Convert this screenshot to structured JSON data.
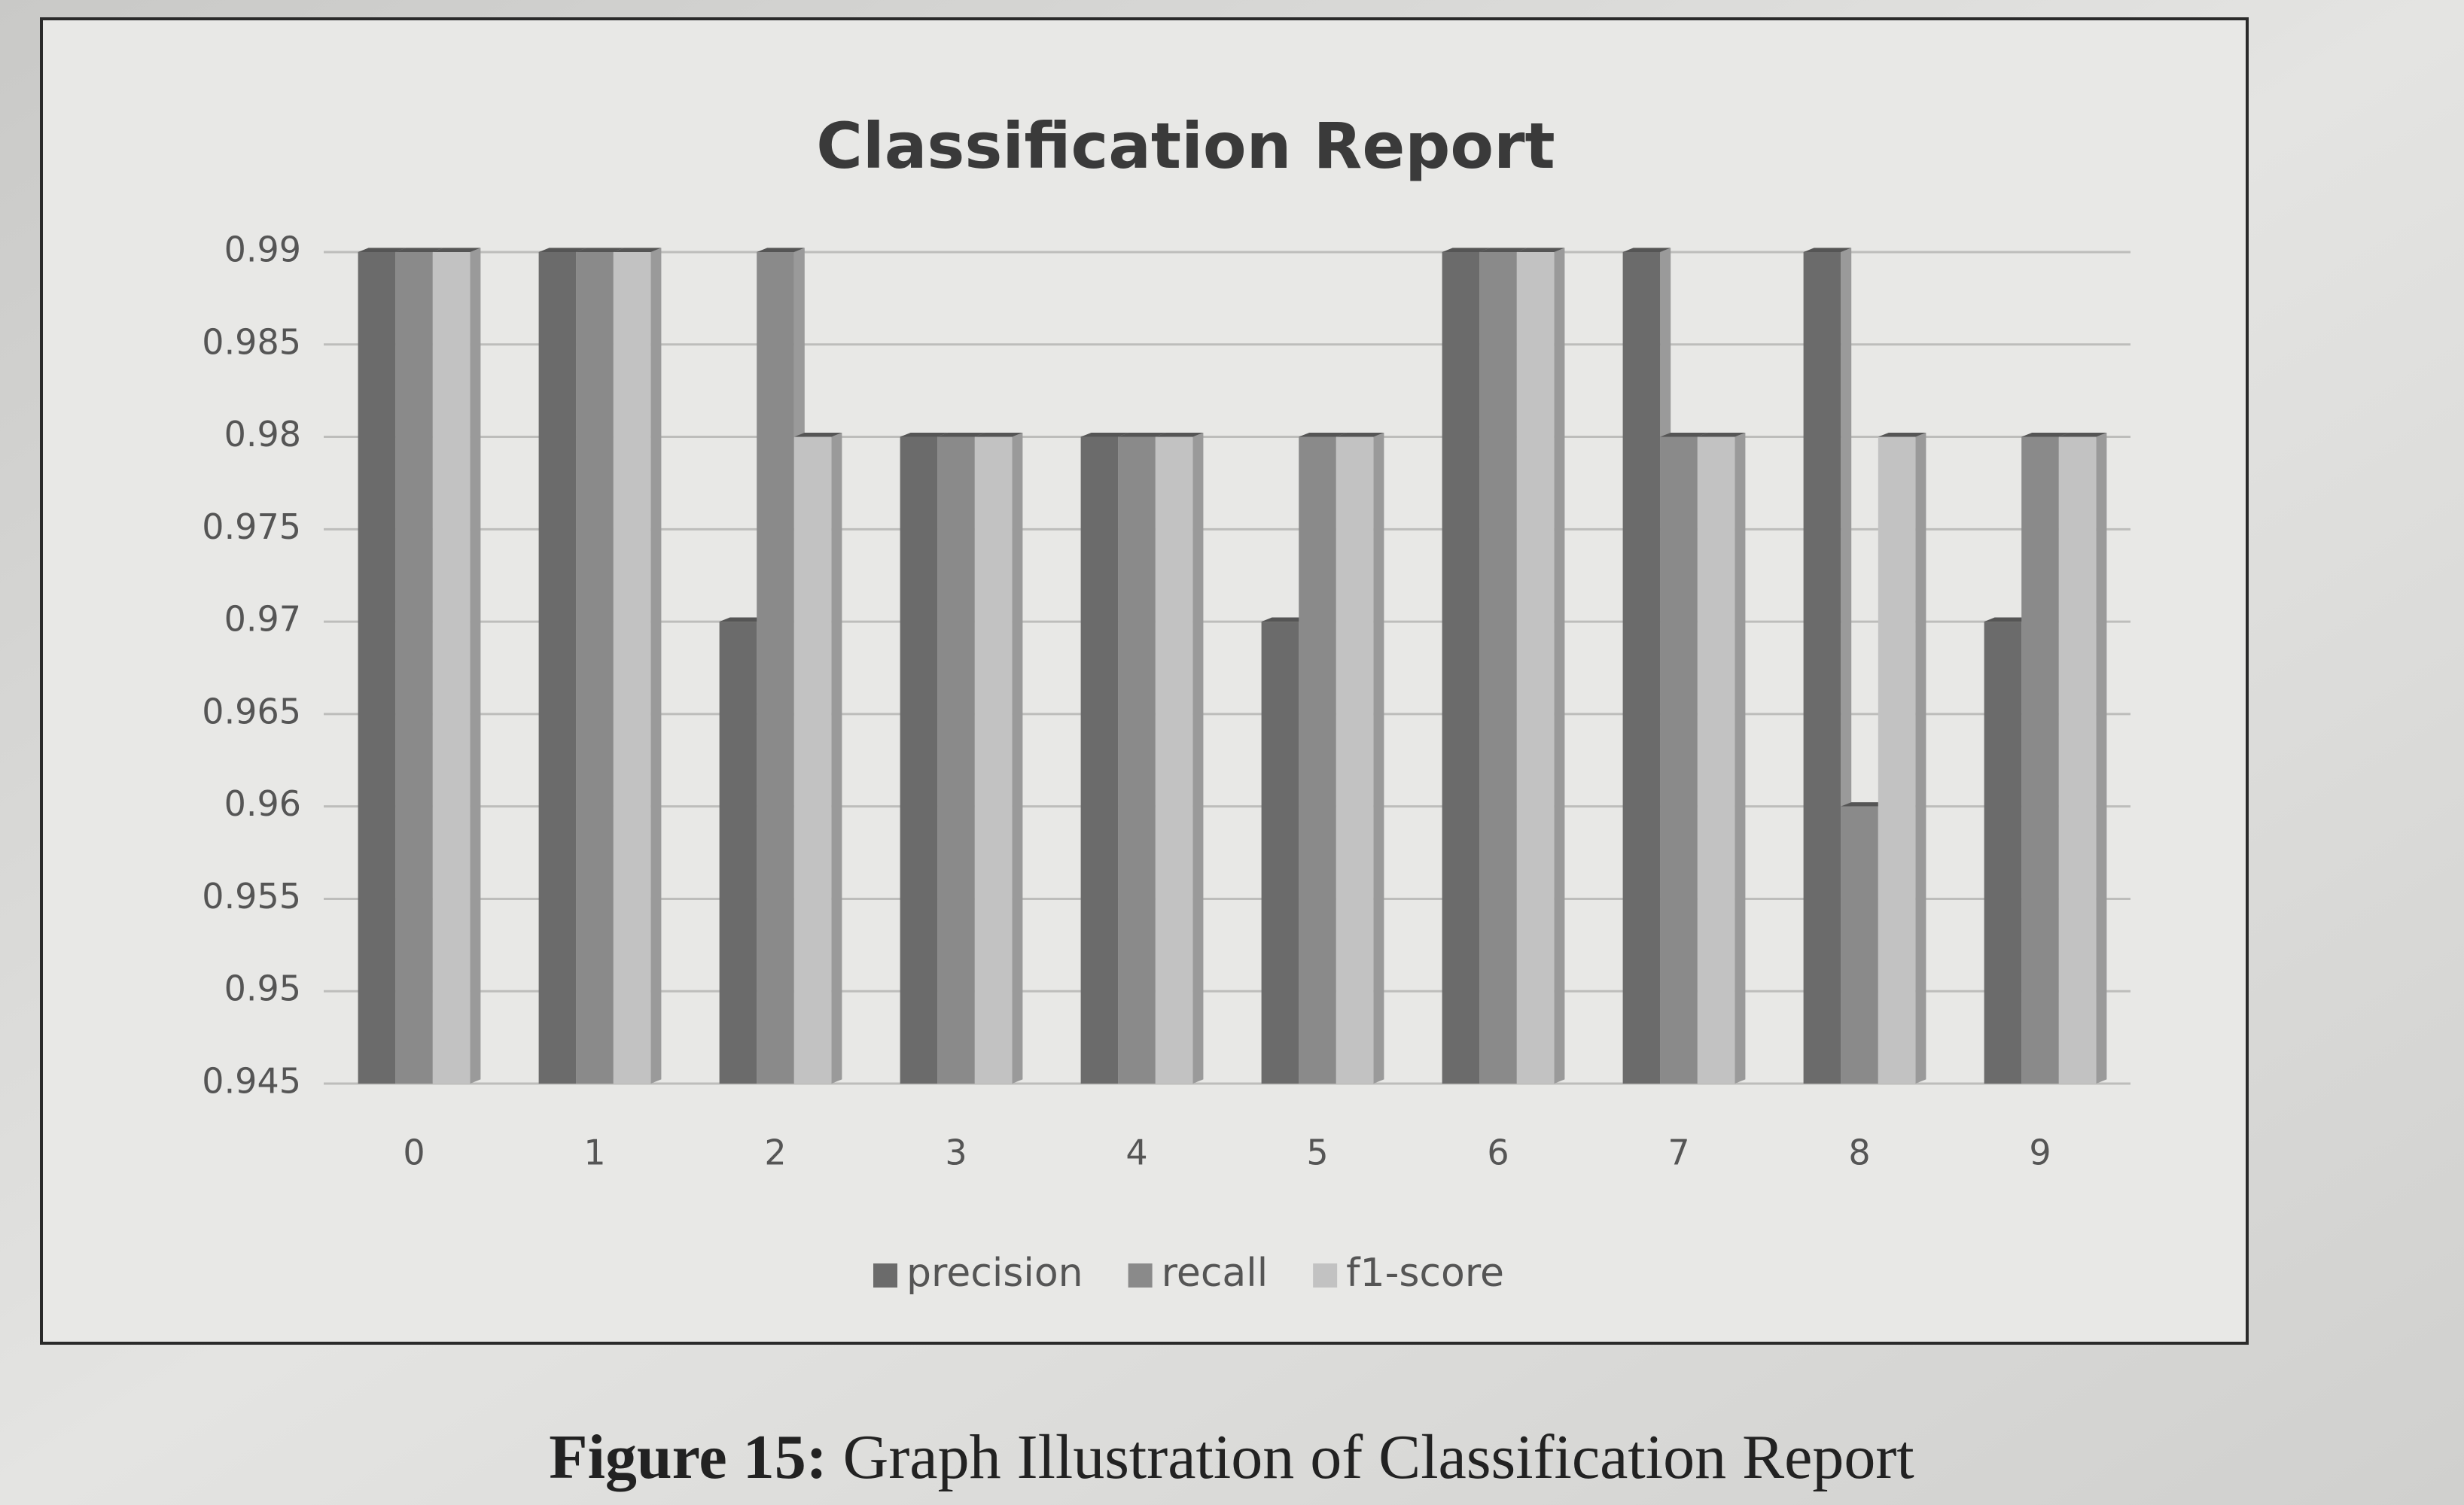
{
  "chart_data": {
    "type": "bar",
    "title": "Classification Report",
    "categories": [
      "0",
      "1",
      "2",
      "3",
      "4",
      "5",
      "6",
      "7",
      "8",
      "9"
    ],
    "series": [
      {
        "name": "precision",
        "color": "#6b6b6b",
        "values": [
          0.99,
          0.99,
          0.97,
          0.98,
          0.98,
          0.97,
          0.99,
          0.99,
          0.99,
          0.97
        ]
      },
      {
        "name": "recall",
        "color": "#8a8a8a",
        "values": [
          0.99,
          0.99,
          0.99,
          0.98,
          0.98,
          0.98,
          0.99,
          0.98,
          0.96,
          0.98
        ]
      },
      {
        "name": "f1-score",
        "color": "#c2c2c2",
        "values": [
          0.99,
          0.99,
          0.98,
          0.98,
          0.98,
          0.98,
          0.99,
          0.98,
          0.98,
          0.98
        ]
      }
    ],
    "ylim": [
      0.945,
      0.99
    ],
    "yticks": [
      0.945,
      0.95,
      0.955,
      0.96,
      0.965,
      0.97,
      0.975,
      0.98,
      0.985,
      0.99
    ],
    "grid": true,
    "legend": "bottom"
  },
  "figure": {
    "label": "Figure 15:",
    "text": "Graph Illustration of Classification Report"
  }
}
